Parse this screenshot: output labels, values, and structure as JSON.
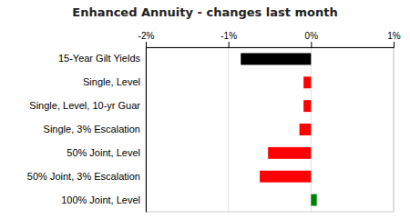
{
  "chart_data": {
    "type": "bar",
    "orientation": "horizontal",
    "title": "Enhanced Annuity - changes last month",
    "categories": [
      "15-Year Gilt Yields",
      "Single, Level",
      "Single, Level, 10-yr Guar",
      "Single, 3% Escalation",
      "50% Joint, Level",
      "50% Joint, 3% Escalation",
      "100% Joint, Level"
    ],
    "values": [
      -0.85,
      -0.09,
      -0.09,
      -0.14,
      -0.52,
      -0.62,
      0.07
    ],
    "colors": [
      "#000000",
      "#ff0000",
      "#ff0000",
      "#ff0000",
      "#ff0000",
      "#ff0000",
      "#008000"
    ],
    "xlim": [
      -2.0,
      1.0
    ],
    "xticks": [
      {
        "value": -2.0,
        "label": "-2%"
      },
      {
        "value": -1.0,
        "label": "-1%"
      },
      {
        "value": 0.0,
        "label": "0%"
      },
      {
        "value": 1.0,
        "label": "1%"
      }
    ],
    "grid": true
  }
}
